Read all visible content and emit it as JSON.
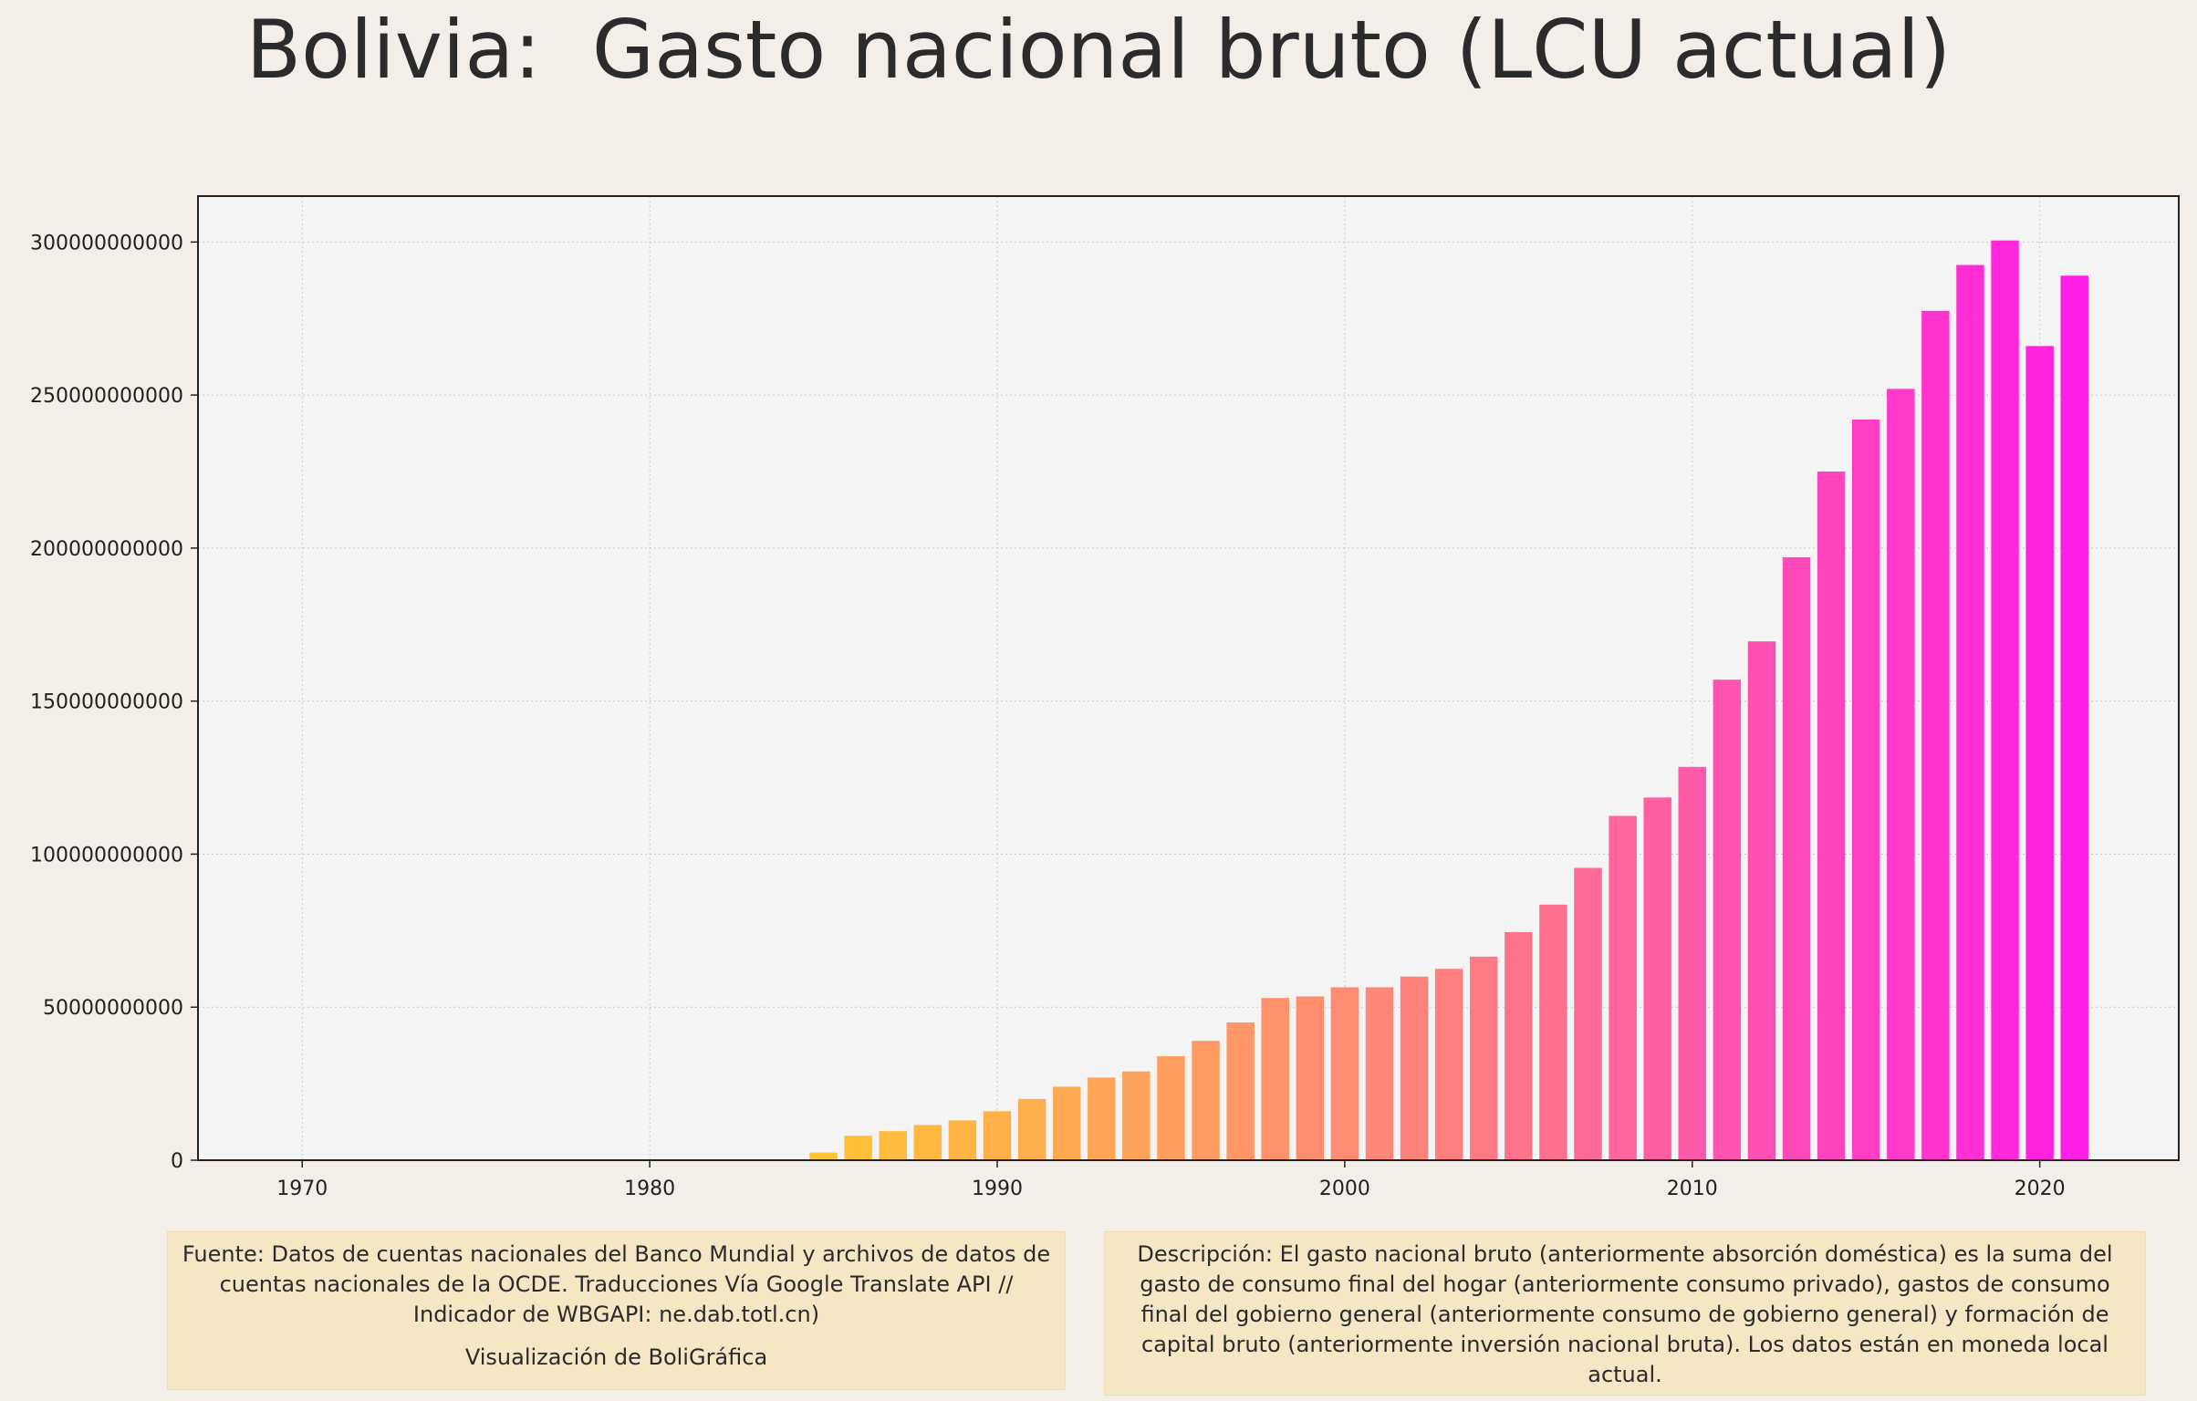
{
  "title": "Bolivia:  Gasto nacional bruto (LCU actual)",
  "source_text": "Fuente: Datos de cuentas nacionales del Banco Mundial y archivos de datos de cuentas nacionales de la OCDE. Traducciones Vía Google Translate API // Indicador de WBGAPI: ne.dab.totl.cn)",
  "credit_text": "Visualización de BoliGráfica",
  "description_text": "Descripción: El gasto nacional bruto (anteriormente absorción doméstica) es la suma del gasto de consumo final del hogar (anteriormente consumo privado), gastos de consumo final del gobierno general (anteriormente consumo de gobierno general) y formación de capital bruto (anteriormente inversión nacional bruta). Los datos están en moneda local actual.",
  "colors": {
    "background": "#f3efe8",
    "plot_background": "#f4f4f4",
    "bar_start": "#ffc434",
    "bar_mid": "#ff7f7f",
    "bar_end": "#ff1ee6",
    "note_background": "#f5e6c4"
  },
  "chart_data": {
    "type": "bar",
    "title": "Bolivia:  Gasto nacional bruto (LCU actual)",
    "xlabel": "",
    "ylabel": "",
    "xlim": [
      1967,
      2024
    ],
    "ylim": [
      0,
      315000000000
    ],
    "xticks": [
      1970,
      1980,
      1990,
      2000,
      2010,
      2020
    ],
    "yticks": [
      0,
      50000000000,
      100000000000,
      150000000000,
      200000000000,
      250000000000,
      300000000000
    ],
    "grid": true,
    "x": [
      1985,
      1986,
      1987,
      1988,
      1989,
      1990,
      1991,
      1992,
      1993,
      1994,
      1995,
      1996,
      1997,
      1998,
      1999,
      2000,
      2001,
      2002,
      2003,
      2004,
      2005,
      2006,
      2007,
      2008,
      2009,
      2010,
      2011,
      2012,
      2013,
      2014,
      2015,
      2016,
      2017,
      2018,
      2019,
      2020,
      2021
    ],
    "values": [
      2500000000,
      8000000000,
      9500000000,
      11500000000,
      13000000000,
      16000000000,
      20000000000,
      24000000000,
      27000000000,
      29000000000,
      34000000000,
      39000000000,
      45000000000,
      53000000000,
      53500000000,
      56500000000,
      56500000000,
      60000000000,
      62500000000,
      66500000000,
      74500000000,
      83500000000,
      95500000000,
      112500000000,
      118500000000,
      128500000000,
      157000000000,
      169500000000,
      197000000000,
      225000000000,
      242000000000,
      252000000000,
      277500000000,
      292500000000,
      300500000000,
      266000000000,
      289000000000
    ]
  }
}
